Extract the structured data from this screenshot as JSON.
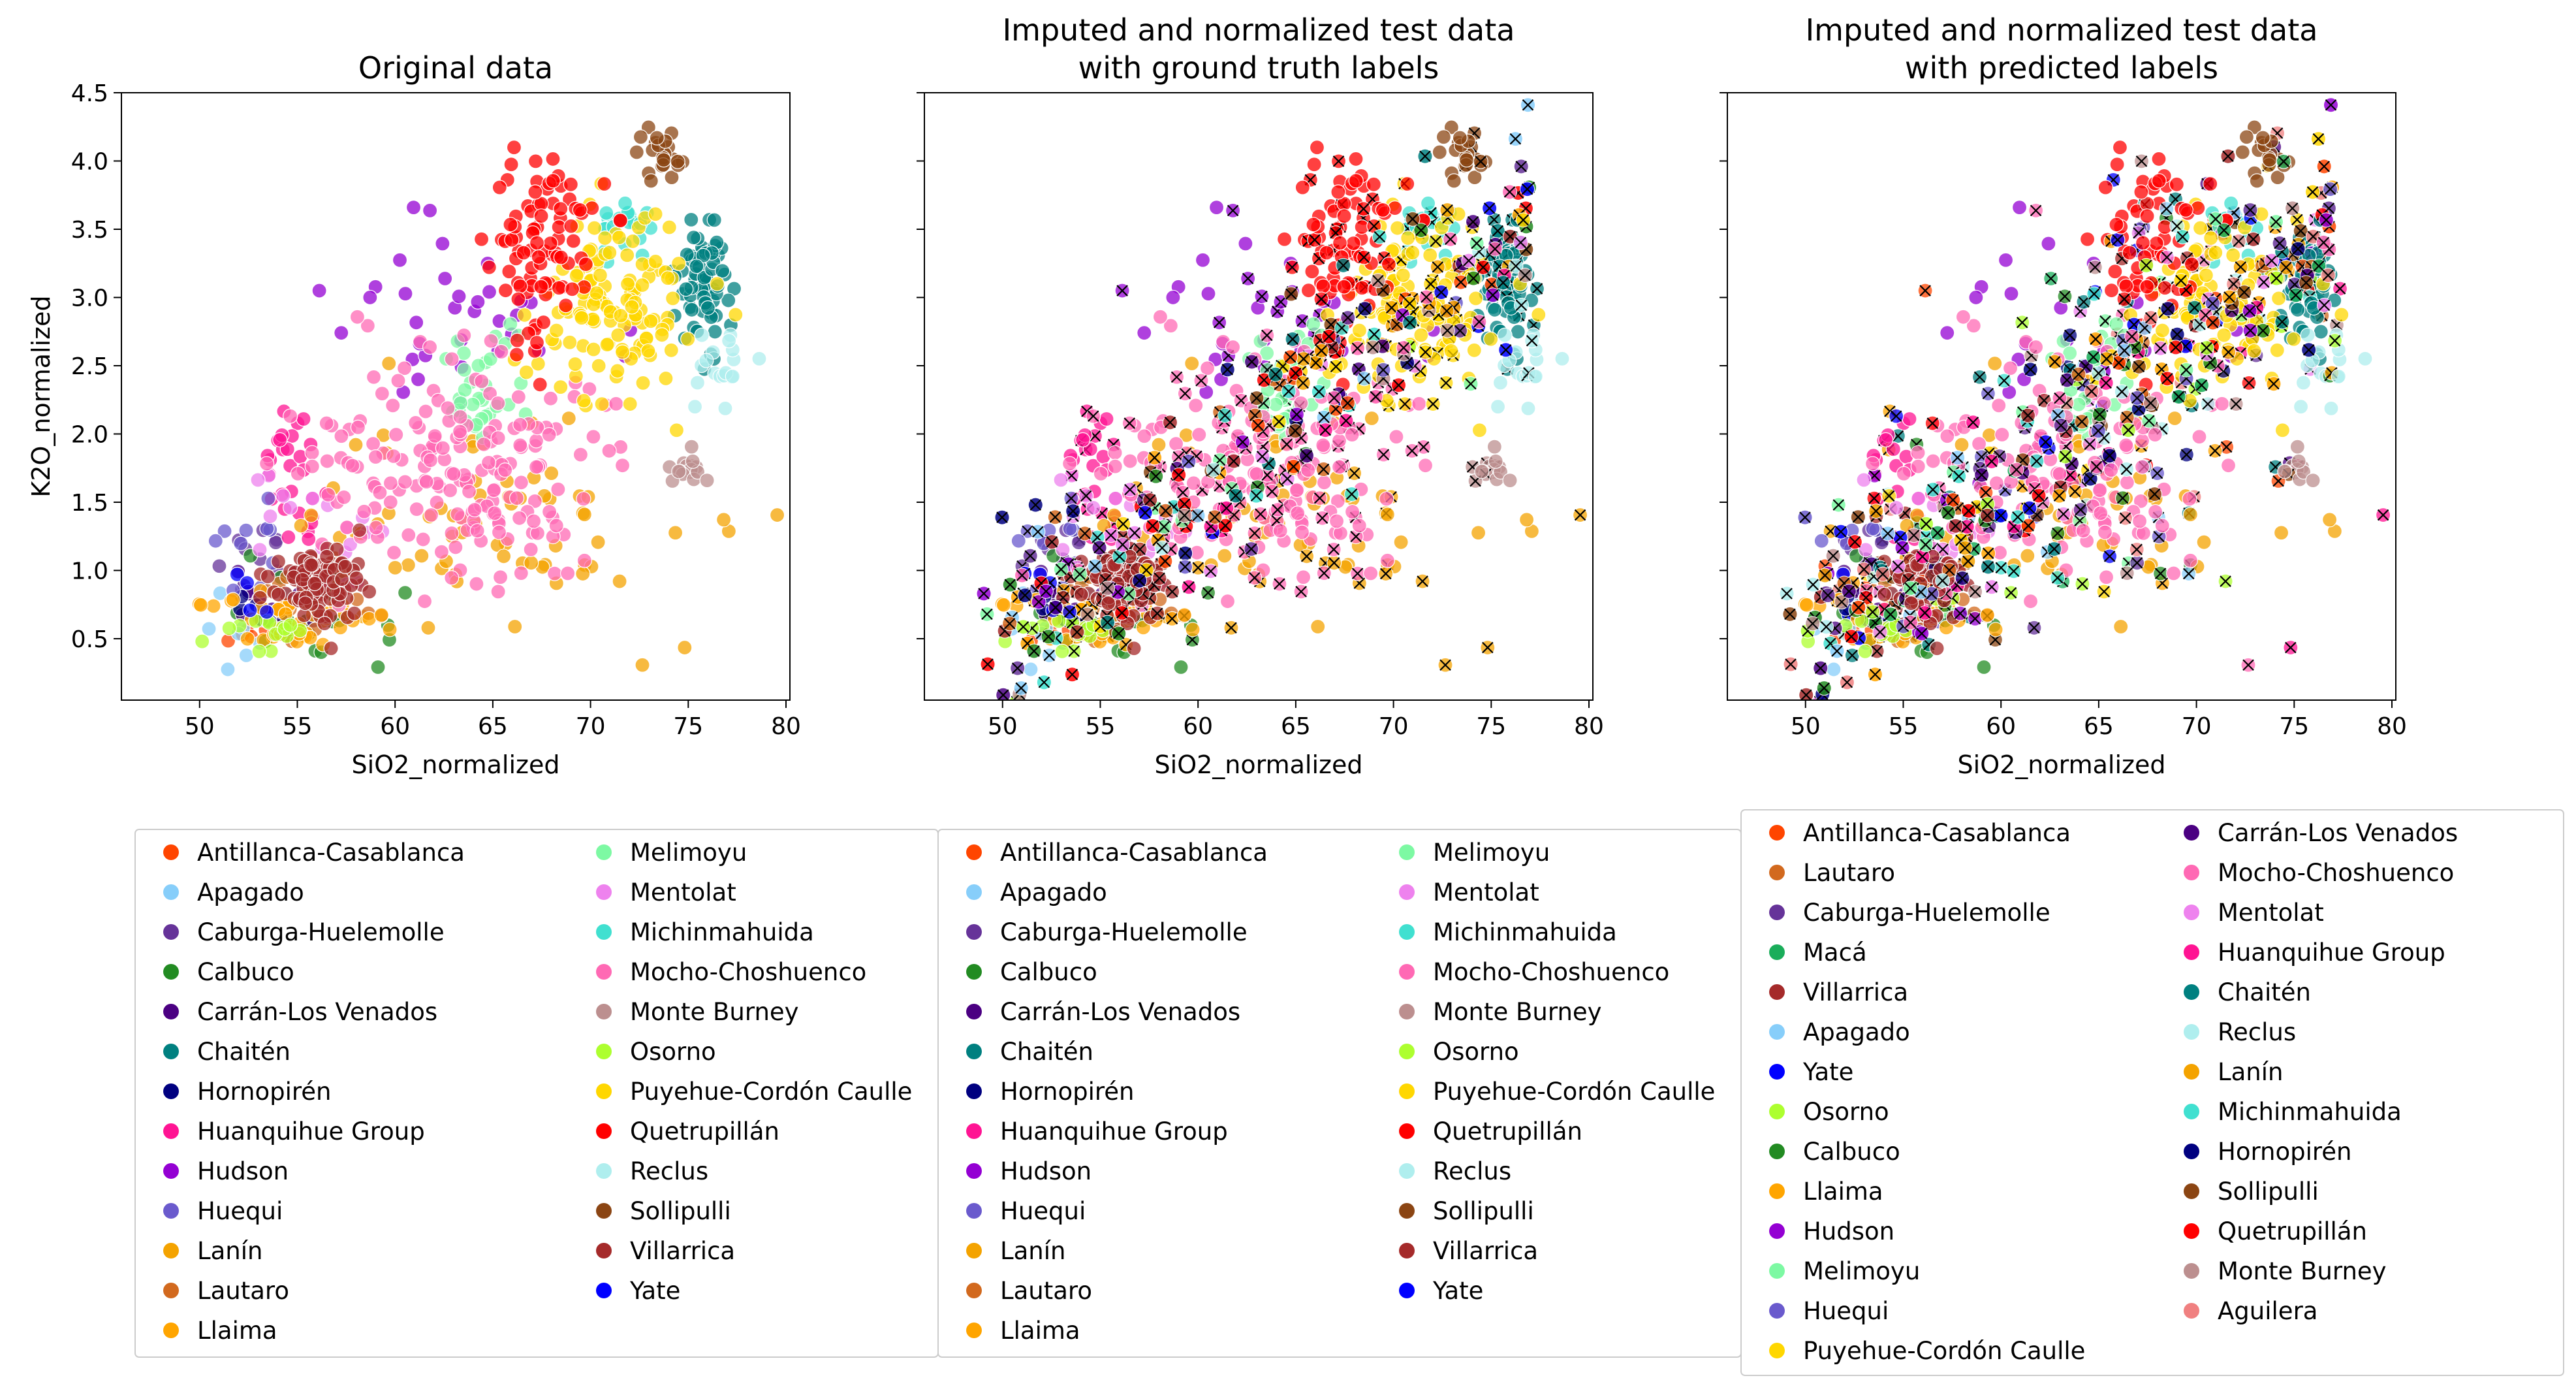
{
  "chart_data": [
    {
      "type": "scatter",
      "title": [
        "Original data"
      ],
      "xlabel": "SiO2_normalized",
      "ylabel": "K2O_normalized",
      "xlim": [
        46,
        80.2
      ],
      "ylim": [
        0.05,
        4.5
      ],
      "xticks": [
        50,
        55,
        60,
        65,
        70,
        75,
        80
      ],
      "yticks": [
        0.5,
        1.0,
        1.5,
        2.0,
        2.5,
        3.0,
        3.5,
        4.0,
        4.5
      ],
      "show_y_ticklabels": true,
      "grid": false,
      "legend_position": "below"
    },
    {
      "type": "scatter",
      "title": [
        "Imputed and normalized test data",
        "with ground truth labels"
      ],
      "xlabel": "SiO2_normalized",
      "ylabel": "",
      "xlim": [
        46,
        80.2
      ],
      "ylim": [
        0.05,
        4.5
      ],
      "xticks": [
        50,
        55,
        60,
        65,
        70,
        75,
        80
      ],
      "yticks": [
        0.5,
        1.0,
        1.5,
        2.0,
        2.5,
        3.0,
        3.5,
        4.0,
        4.5
      ],
      "show_y_ticklabels": false,
      "grid": false,
      "legend_position": "below",
      "test_marker": "x"
    },
    {
      "type": "scatter",
      "title": [
        "Imputed and normalized test data",
        "with predicted labels"
      ],
      "xlabel": "SiO2_normalized",
      "ylabel": "",
      "xlim": [
        46,
        80.2
      ],
      "ylim": [
        0.05,
        4.5
      ],
      "xticks": [
        50,
        55,
        60,
        65,
        70,
        75,
        80
      ],
      "yticks": [
        0.5,
        1.0,
        1.5,
        2.0,
        2.5,
        3.0,
        3.5,
        4.0,
        4.5
      ],
      "show_y_ticklabels": false,
      "grid": false,
      "legend_position": "below",
      "test_marker": "x"
    }
  ],
  "series": [
    {
      "name": "Antillanca-Casablanca",
      "color": "#ff4500",
      "cx": 53.5,
      "cy": 0.6,
      "sx": 1.0,
      "sy": 0.1,
      "n": 14
    },
    {
      "name": "Apagado",
      "color": "#87cefa",
      "cx": 51.5,
      "cy": 0.6,
      "sx": 1.2,
      "sy": 0.15,
      "n": 8
    },
    {
      "name": "Caburga-Huelemolle",
      "color": "#663399",
      "cx": 52.5,
      "cy": 1.1,
      "sx": 1.0,
      "sy": 0.2,
      "n": 10
    },
    {
      "name": "Calbuco",
      "color": "#228b22",
      "cx": 56.5,
      "cy": 0.65,
      "sx": 2.5,
      "sy": 0.2,
      "n": 26
    },
    {
      "name": "Carrán-Los Venados",
      "color": "#4b0082",
      "cx": 53.0,
      "cy": 0.8,
      "sx": 1.2,
      "sy": 0.2,
      "n": 12
    },
    {
      "name": "Chaitén",
      "color": "#008080",
      "cx": 76.0,
      "cy": 3.05,
      "sx": 0.7,
      "sy": 0.22,
      "n": 70
    },
    {
      "name": "Hornopirén",
      "color": "#000080",
      "cx": 53.0,
      "cy": 0.75,
      "sx": 0.8,
      "sy": 0.1,
      "n": 6
    },
    {
      "name": "Huanquihue Group",
      "color": "#ff1493",
      "cx": 54.5,
      "cy": 1.75,
      "sx": 1.0,
      "sy": 0.3,
      "n": 28
    },
    {
      "name": "Hudson",
      "color": "#9400d3",
      "cx": 64.0,
      "cy": 2.85,
      "sx": 3.5,
      "sy": 0.3,
      "n": 34
    },
    {
      "name": "Huequi",
      "color": "#6a5acd",
      "cx": 52.5,
      "cy": 1.2,
      "sx": 1.0,
      "sy": 0.2,
      "n": 10
    },
    {
      "name": "Lanín",
      "color": "#f4a300",
      "cx": 64.0,
      "cy": 1.35,
      "sx": 5.0,
      "sy": 0.4,
      "n": 70
    },
    {
      "name": "Lautaro",
      "color": "#d2691e",
      "cx": 56.0,
      "cy": 0.8,
      "sx": 2.0,
      "sy": 0.2,
      "n": 14
    },
    {
      "name": "Llaima",
      "color": "#ffa500",
      "cx": 55.0,
      "cy": 0.65,
      "sx": 2.5,
      "sy": 0.15,
      "n": 44
    },
    {
      "name": "Melimoyu",
      "color": "#7df9a3",
      "cx": 64.0,
      "cy": 2.35,
      "sx": 1.2,
      "sy": 0.2,
      "n": 32
    },
    {
      "name": "Mentolat",
      "color": "#ee82ee",
      "cx": 56.0,
      "cy": 1.3,
      "sx": 1.5,
      "sy": 0.25,
      "n": 20
    },
    {
      "name": "Michinmahuida",
      "color": "#40e0d0",
      "cx": 72.0,
      "cy": 3.55,
      "sx": 0.7,
      "sy": 0.15,
      "n": 20
    },
    {
      "name": "Mocho-Choshuenco",
      "color": "#ff69b4",
      "cx": 63.5,
      "cy": 1.75,
      "sx": 3.5,
      "sy": 0.4,
      "n": 190
    },
    {
      "name": "Monte Burney",
      "color": "#bc8f8f",
      "cx": 75.0,
      "cy": 1.7,
      "sx": 0.6,
      "sy": 0.1,
      "n": 16
    },
    {
      "name": "Osorno",
      "color": "#adff2f",
      "cx": 53.0,
      "cy": 0.55,
      "sx": 1.2,
      "sy": 0.1,
      "n": 14
    },
    {
      "name": "Puyehue-Cordón Caulle",
      "color": "#ffd700",
      "cx": 71.0,
      "cy": 2.9,
      "sx": 2.0,
      "sy": 0.3,
      "n": 130
    },
    {
      "name": "Quetrupillán",
      "color": "#ff0000",
      "cx": 67.5,
      "cy": 3.45,
      "sx": 1.5,
      "sy": 0.35,
      "n": 90
    },
    {
      "name": "Reclus",
      "color": "#afeeee",
      "cx": 77.0,
      "cy": 2.5,
      "sx": 0.8,
      "sy": 0.15,
      "n": 18
    },
    {
      "name": "Sollipulli",
      "color": "#8b4513",
      "cx": 73.5,
      "cy": 4.05,
      "sx": 0.6,
      "sy": 0.15,
      "n": 22
    },
    {
      "name": "Villarrica",
      "color": "#a52a2a",
      "cx": 56.0,
      "cy": 0.9,
      "sx": 1.3,
      "sy": 0.15,
      "n": 80
    },
    {
      "name": "Yate",
      "color": "#0000ff",
      "cx": 52.5,
      "cy": 0.8,
      "sx": 0.5,
      "sy": 0.08,
      "n": 4
    },
    {
      "name": "Macá",
      "color": "#1aad5a",
      "cx": 54.0,
      "cy": 1.0,
      "sx": 1.0,
      "sy": 0.2,
      "n": 0
    },
    {
      "name": "Aguilera",
      "color": "#f08080",
      "cx": 75.0,
      "cy": 1.7,
      "sx": 0.5,
      "sy": 0.1,
      "n": 0
    }
  ],
  "legends": [
    {
      "columns": [
        [
          "Antillanca-Casablanca",
          "Apagado",
          "Caburga-Huelemolle",
          "Calbuco",
          "Carrán-Los Venados",
          "Chaitén",
          "Hornopirén",
          "Huanquihue Group",
          "Hudson",
          "Huequi",
          "Lanín",
          "Lautaro",
          "Llaima"
        ],
        [
          "Melimoyu",
          "Mentolat",
          "Michinmahuida",
          "Mocho-Choshuenco",
          "Monte Burney",
          "Osorno",
          "Puyehue-Cordón Caulle",
          "Quetrupillán",
          "Reclus",
          "Sollipulli",
          "Villarrica",
          "Yate"
        ]
      ]
    },
    {
      "columns": [
        [
          "Antillanca-Casablanca",
          "Apagado",
          "Caburga-Huelemolle",
          "Calbuco",
          "Carrán-Los Venados",
          "Chaitén",
          "Hornopirén",
          "Huanquihue Group",
          "Hudson",
          "Huequi",
          "Lanín",
          "Lautaro",
          "Llaima"
        ],
        [
          "Melimoyu",
          "Mentolat",
          "Michinmahuida",
          "Mocho-Choshuenco",
          "Monte Burney",
          "Osorno",
          "Puyehue-Cordón Caulle",
          "Quetrupillán",
          "Reclus",
          "Sollipulli",
          "Villarrica",
          "Yate"
        ]
      ]
    },
    {
      "columns": [
        [
          "Antillanca-Casablanca",
          "Lautaro",
          "Caburga-Huelemolle",
          "Macá",
          "Villarrica",
          "Apagado",
          "Yate",
          "Osorno",
          "Calbuco",
          "Llaima",
          "Hudson",
          "Melimoyu",
          "Huequi",
          "Puyehue-Cordón Caulle"
        ],
        [
          "Carrán-Los Venados",
          "Mocho-Choshuenco",
          "Mentolat",
          "Huanquihue Group",
          "Chaitén",
          "Reclus",
          "Lanín",
          "Michinmahuida",
          "Hornopirén",
          "Sollipulli",
          "Quetrupillán",
          "Monte Burney",
          "Aguilera"
        ]
      ]
    }
  ]
}
